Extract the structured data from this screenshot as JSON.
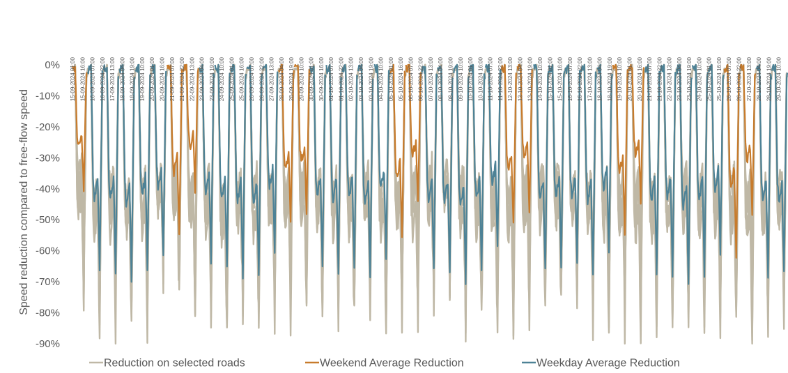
{
  "chart_data": {
    "type": "line",
    "title": "",
    "xlabel": "",
    "ylabel": "Speed reduction compared to free-flow speed",
    "ylim": [
      -90,
      0
    ],
    "yticks": [
      0,
      -10,
      -20,
      -30,
      -40,
      -50,
      -60,
      -70,
      -80,
      -90
    ],
    "ytick_labels": [
      "0%",
      "-10%",
      "-20%",
      "-30%",
      "-40%",
      "-50%",
      "-60%",
      "-70%",
      "-80%",
      "-90%"
    ],
    "x_start": "15-09-2024 01:00",
    "x_end": "29-10-2024 23:00",
    "x_tick_labels": [
      "15-09-2024 01:00",
      "15-09-2024 16:00",
      "16-09-2024 07:00",
      "16-09-2024 22:00",
      "17-09-2024 13:00",
      "18-09-2024 04:00",
      "18-09-2024 19:00",
      "19-09-2024 10:00",
      "20-09-2024 01:00",
      "20-09-2024 16:00",
      "21-09-2024 07:00",
      "21-09-2024 22:00",
      "22-09-2024 13:00",
      "23-09-2024 04:00",
      "23-09-2024 19:00",
      "24-09-2024 10:00",
      "25-09-2024 01:00",
      "25-09-2024 16:00",
      "26-09-2024 07:00",
      "26-09-2024 22:00",
      "27-09-2024 13:00",
      "28-09-2024 04:00",
      "28-09-2024 19:00",
      "29-09-2024 10:00",
      "30-09-2024 01:00",
      "30-09-2024 16:00",
      "01-10-2024 07:00",
      "01-10-2024 22:00",
      "02-10-2024 13:00",
      "03-10-2024 04:00",
      "03-10-2024 19:00",
      "04-10-2024 10:00",
      "05-10-2024 01:00",
      "05-10-2024 16:00",
      "06-10-2024 07:00",
      "06-10-2024 22:00",
      "07-10-2024 13:00",
      "08-10-2024 04:00",
      "08-10-2024 19:00",
      "09-10-2024 10:00",
      "10-10-2024 01:00",
      "10-10-2024 16:00",
      "11-10-2024 07:00",
      "11-10-2024 22:00",
      "12-10-2024 13:00",
      "13-10-2024 04:00",
      "13-10-2024 19:00",
      "14-10-2024 10:00",
      "15-10-2024 01:00",
      "15-10-2024 16:00",
      "16-10-2024 07:00",
      "16-10-2024 22:00",
      "17-10-2024 13:00",
      "18-10-2024 04:00",
      "18-10-2024 19:00",
      "19-10-2024 10:00",
      "20-10-2024 01:00",
      "20-10-2024 16:00",
      "21-10-2024 07:00",
      "21-10-2024 22:00",
      "22-10-2024 13:00",
      "23-10-2024 04:00",
      "23-10-2024 19:00",
      "24-10-2024 10:00",
      "25-10-2024 01:00",
      "25-10-2024 16:00",
      "26-10-2024 07:00",
      "26-10-2024 22:00",
      "27-10-2024 13:00",
      "28-10-2024 04:00",
      "28-10-2024 19:00",
      "29-10-2024 10:00"
    ],
    "grid": false,
    "legend_position": "bottom",
    "series": [
      {
        "name": "Reduction on selected roads",
        "color": "#bfb8a6",
        "note_values": "many overlapping lines; daily minima range -75% to -87%",
        "daily_min": [
          -76,
          -87,
          -86,
          -86,
          -85,
          -80,
          -78,
          -82,
          -86,
          -87,
          -85,
          -85,
          -84,
          -83,
          -80,
          -80,
          -84,
          -86,
          -85,
          -86,
          -85,
          -83,
          -80,
          -78,
          -84,
          -86,
          -86,
          -85,
          -85,
          -82,
          -80,
          -80,
          -86,
          -86,
          -86,
          -87,
          -86,
          -83,
          -81,
          -84,
          -86,
          -86,
          -87,
          -85,
          -82
        ]
      },
      {
        "name": "Weekend Average Reduction",
        "color": "#c77b2c",
        "days": [
          "15-09-2024",
          "21-09-2024",
          "22-09-2024",
          "28-09-2024",
          "29-09-2024",
          "05-10-2024",
          "06-10-2024",
          "12-10-2024",
          "13-10-2024",
          "19-10-2024",
          "20-10-2024",
          "26-10-2024",
          "27-10-2024"
        ],
        "daily_min": [
          -41,
          -54,
          -41,
          -52,
          -48,
          -56,
          -45,
          -52,
          -47,
          -54,
          -44,
          -61,
          -48
        ]
      },
      {
        "name": "Weekday Average Reduction",
        "color": "#4d8296",
        "days": [
          "16-09-2024",
          "17-09-2024",
          "18-09-2024",
          "19-09-2024",
          "20-09-2024",
          "23-09-2024",
          "24-09-2024",
          "25-09-2024",
          "26-09-2024",
          "27-09-2024",
          "30-09-2024",
          "01-10-2024",
          "02-10-2024",
          "03-10-2024",
          "04-10-2024",
          "07-10-2024",
          "08-10-2024",
          "09-10-2024",
          "10-10-2024",
          "11-10-2024",
          "14-10-2024",
          "15-10-2024",
          "16-10-2024",
          "17-10-2024",
          "18-10-2024",
          "21-10-2024",
          "22-10-2024",
          "23-10-2024",
          "24-10-2024",
          "25-10-2024",
          "28-10-2024",
          "29-10-2024"
        ],
        "daily_min": [
          -67,
          -67,
          -69,
          -65,
          -62,
          -63,
          -66,
          -68,
          -69,
          -60,
          -66,
          -67,
          -66,
          -69,
          -62,
          -67,
          -68,
          -70,
          -67,
          -59,
          -67,
          -65,
          -65,
          -68,
          -61,
          -67,
          -67,
          -70,
          -67,
          -61,
          -68,
          -68
        ]
      }
    ]
  }
}
